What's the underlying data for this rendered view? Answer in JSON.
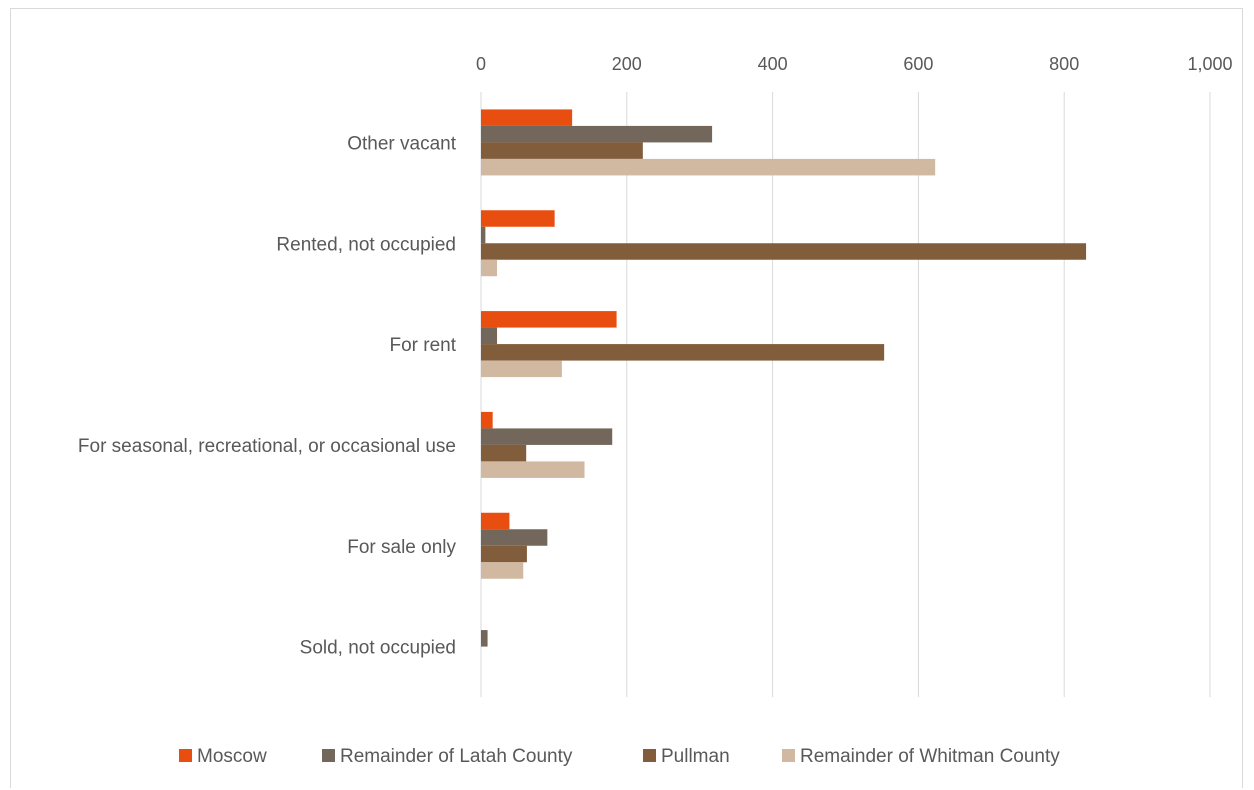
{
  "chart_data": {
    "type": "bar",
    "orientation": "horizontal",
    "title": "",
    "xlabel": "",
    "ylabel": "",
    "xlim": [
      0,
      1000
    ],
    "x_ticks": [
      0,
      200,
      400,
      600,
      800,
      1000
    ],
    "x_tick_labels": [
      "0",
      "200",
      "400",
      "600",
      "800",
      "1,000"
    ],
    "x_axis_position": "top",
    "grid": true,
    "legend_position": "bottom",
    "categories": [
      "Other vacant",
      "Rented, not occupied",
      "For rent",
      "For seasonal, recreational, or occasional use",
      "For sale only",
      "Sold, not occupied"
    ],
    "series": [
      {
        "name": "Moscow",
        "color": "#E84E0F",
        "values": [
          125,
          101,
          186,
          16,
          39,
          0
        ]
      },
      {
        "name": "Remainder of Latah County",
        "color": "#73665A",
        "values": [
          317,
          6,
          22,
          180,
          91,
          9
        ]
      },
      {
        "name": "Pullman",
        "color": "#825D3C",
        "values": [
          222,
          830,
          553,
          62,
          63,
          0
        ]
      },
      {
        "name": "Remainder of Whitman County",
        "color": "#D0B9A0",
        "values": [
          623,
          22,
          111,
          142,
          58,
          0
        ]
      }
    ]
  }
}
